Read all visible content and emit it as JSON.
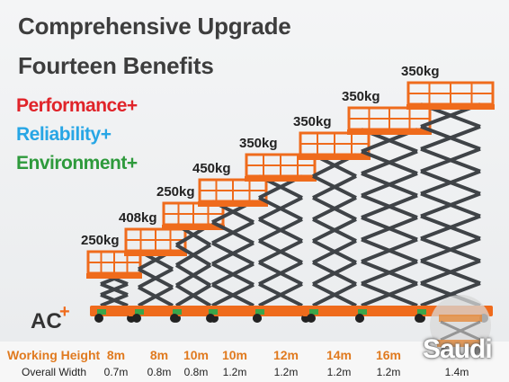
{
  "header": {
    "title_line1": "Comprehensive Upgrade",
    "title_line2": "Fourteen Benefits"
  },
  "benefits": {
    "performance": "Performance+",
    "reliability": "Reliability+",
    "environment": "Environment+"
  },
  "series_label": {
    "text": "AC",
    "plus": "+"
  },
  "rows": {
    "working_height_label": "Working Height",
    "overall_width_label": "Overall Width"
  },
  "lifts": [
    {
      "capacity": "250kg",
      "working_height": "8m",
      "overall_width": "0.7m"
    },
    {
      "capacity": "408kg",
      "working_height": "8m",
      "overall_width": "0.8m"
    },
    {
      "capacity": "250kg",
      "working_height": "10m",
      "overall_width": "0.8m"
    },
    {
      "capacity": "450kg",
      "working_height": "10m",
      "overall_width": "1.2m"
    },
    {
      "capacity": "350kg",
      "working_height": "12m",
      "overall_width": "1.2m"
    },
    {
      "capacity": "350kg",
      "working_height": "14m",
      "overall_width": "1.2m"
    },
    {
      "capacity": "350kg",
      "working_height": "16m",
      "overall_width": "1.2m"
    },
    {
      "capacity": "350kg",
      "working_height": "",
      "overall_width": "1.4m"
    }
  ],
  "watermark": {
    "text": "Saudi",
    "icon": "equipment-logo-icon"
  },
  "colors": {
    "accent_orange": "#ef6b1c",
    "performance_red": "#e0242a",
    "reliability_blue": "#27a6e5",
    "environment_green": "#2e9a3c",
    "scissor_gray": "#3f4347"
  }
}
